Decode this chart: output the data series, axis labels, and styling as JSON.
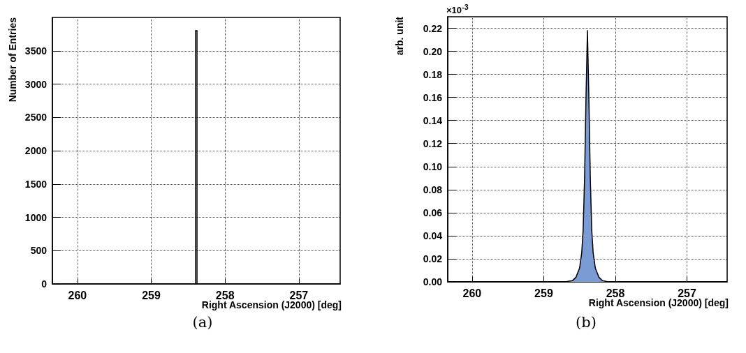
{
  "chart_data": [
    {
      "type": "histogram",
      "xlabel": "Right Ascension (J2000) [deg]",
      "ylabel": "Number of Entries",
      "bins": [
        258.4,
        258.38
      ],
      "values": [
        3800
      ],
      "color": "#000000",
      "xlim": [
        260.34,
        256.44
      ],
      "xticks": [
        260,
        259,
        258,
        257
      ],
      "ylim": [
        0,
        4000
      ],
      "yticks": [
        0,
        500,
        1000,
        1500,
        2000,
        2500,
        3000,
        3500
      ],
      "grid": true,
      "annotations": [
        "(a)"
      ]
    },
    {
      "type": "area",
      "xlabel": "Right Ascension (J2000) [deg]",
      "ylabel": "arb. unit",
      "x": [
        260.34,
        258.7,
        258.6,
        258.55,
        258.5,
        258.47,
        258.45,
        258.43,
        258.41,
        258.39,
        258.37,
        258.35,
        258.33,
        258.31,
        258.28,
        258.23,
        258.18,
        258.1,
        256.44
      ],
      "values": [
        0,
        0,
        0.001,
        0.004,
        0.012,
        0.025,
        0.045,
        0.09,
        0.16,
        0.218,
        0.16,
        0.09,
        0.045,
        0.025,
        0.012,
        0.004,
        0.001,
        0,
        0
      ],
      "color": "#7a9bd3",
      "xlim": [
        260.34,
        256.44
      ],
      "xticks": [
        260,
        259,
        258,
        257
      ],
      "ylim": [
        0,
        0.23
      ],
      "yticks": [
        {
          "value": 0,
          "label": "0.00"
        },
        {
          "value": 0.02,
          "label": "0.02"
        },
        {
          "value": 0.04,
          "label": "0.04"
        },
        {
          "value": 0.06,
          "label": "0.06"
        },
        {
          "value": 0.08,
          "label": "0.08"
        },
        {
          "value": 0.1,
          "label": "0.10"
        },
        {
          "value": 0.12,
          "label": "0.12"
        },
        {
          "value": 0.14,
          "label": "0.14"
        },
        {
          "value": 0.16,
          "label": "0.16"
        },
        {
          "value": 0.18,
          "label": "0.18"
        },
        {
          "value": 0.2,
          "label": "0.20"
        },
        {
          "value": 0.22,
          "label": "0.22"
        }
      ],
      "grid": true,
      "annotations": [
        "×10$^{-3}$",
        "(b)"
      ]
    }
  ]
}
